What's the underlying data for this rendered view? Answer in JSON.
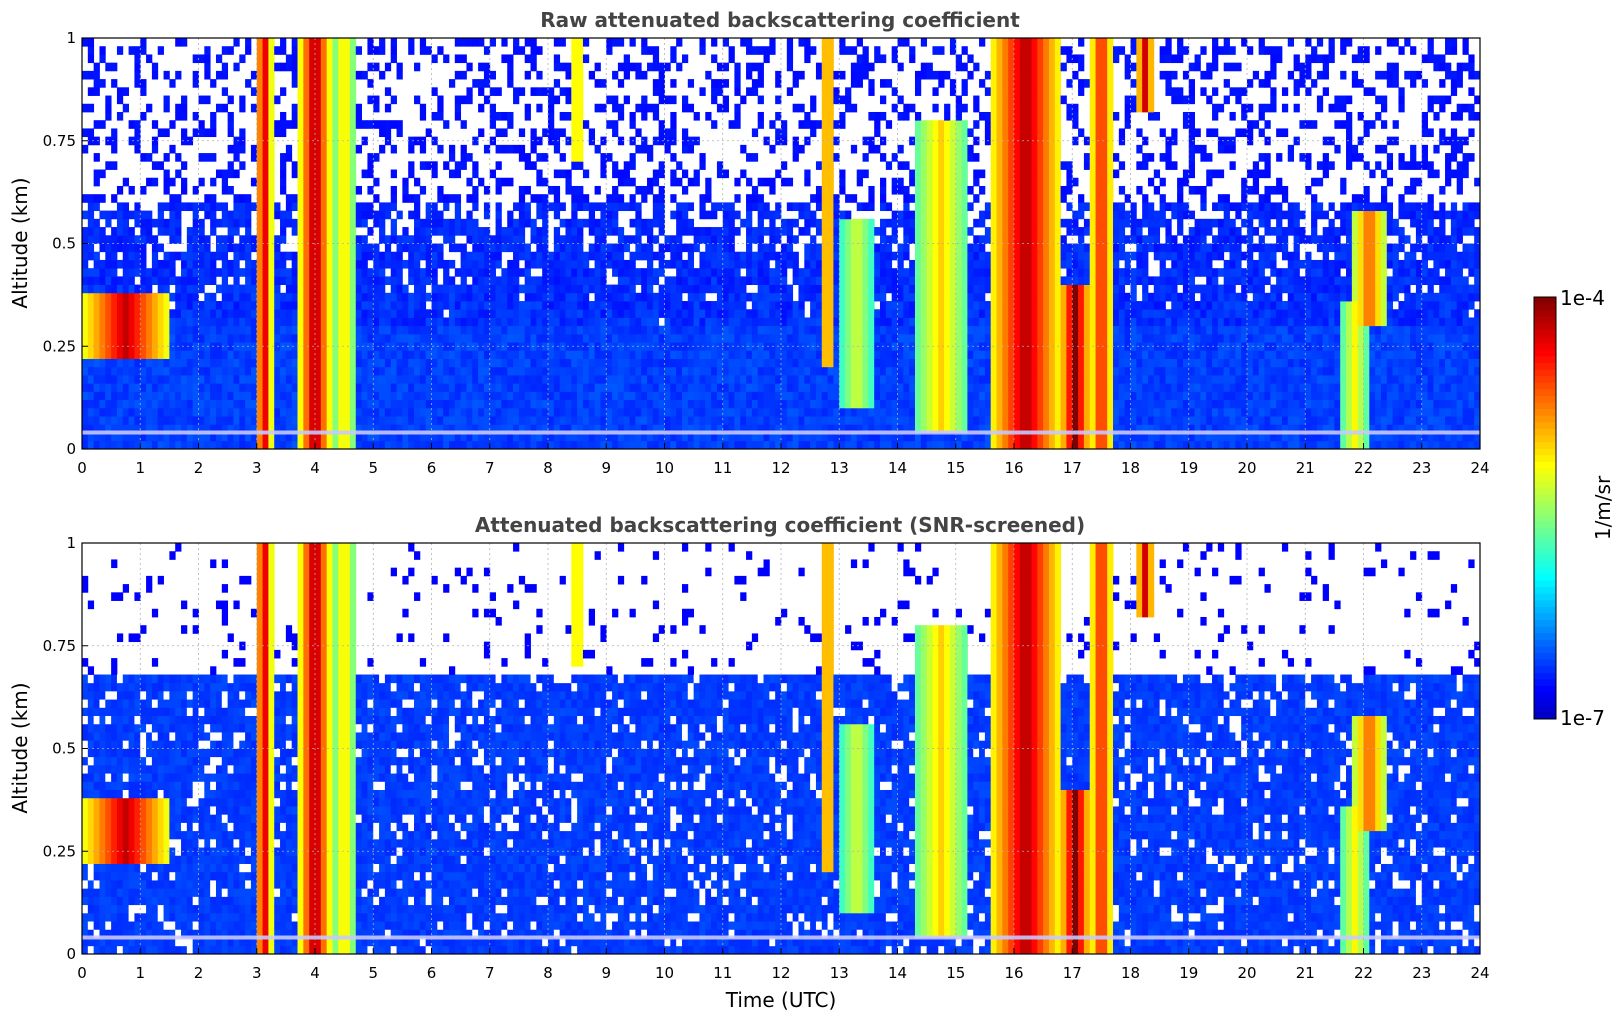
{
  "chart_data": {
    "type": "heatmap",
    "colormap": "jet",
    "x_label": "Time (UTC)",
    "x_ticks": [
      "0",
      "1",
      "2",
      "3",
      "4",
      "5",
      "6",
      "7",
      "8",
      "9",
      "10",
      "11",
      "12",
      "13",
      "14",
      "15",
      "16",
      "17",
      "18",
      "19",
      "20",
      "21",
      "22",
      "23",
      "24"
    ],
    "y_ticks": [
      "0",
      "0.25",
      "0.5",
      "0.75",
      "1"
    ],
    "xlim": [
      0,
      24
    ],
    "ylim": [
      0,
      1
    ],
    "grid": true,
    "colorbar": {
      "max_label": "1e-4",
      "min_label": "1e-7",
      "unit": "1/m/sr",
      "scale": "log",
      "range": [
        1e-07,
        0.0001
      ]
    },
    "panels": [
      {
        "title": "Raw attenuated backscattering coefficient",
        "ylabel": "Altitude (km)",
        "screened": false
      },
      {
        "title": "Attenuated backscattering coefficient (SNR-screened)",
        "ylabel": "Altitude (km)",
        "screened": true
      }
    ],
    "features": [
      {
        "t0": 0.0,
        "t1": 1.5,
        "z0": 0.22,
        "z1": 0.38,
        "level": 0.92
      },
      {
        "t0": 3.0,
        "t1": 3.25,
        "z0": 0.0,
        "z1": 1.0,
        "level": 0.95
      },
      {
        "t0": 3.75,
        "t1": 4.25,
        "z0": 0.0,
        "z1": 1.0,
        "level": 0.98
      },
      {
        "t0": 4.3,
        "t1": 4.7,
        "z0": 0.0,
        "z1": 1.0,
        "level": 0.6
      },
      {
        "t0": 8.4,
        "t1": 8.6,
        "z0": 0.7,
        "z1": 1.0,
        "level": 0.7
      },
      {
        "t0": 12.7,
        "t1": 12.9,
        "z0": 0.2,
        "z1": 1.0,
        "level": 0.8
      },
      {
        "t0": 13.0,
        "t1": 13.6,
        "z0": 0.1,
        "z1": 0.55,
        "level": 0.5
      },
      {
        "t0": 14.3,
        "t1": 15.2,
        "z0": 0.05,
        "z1": 0.8,
        "level": 0.6
      },
      {
        "t0": 15.6,
        "t1": 16.8,
        "z0": 0.0,
        "z1": 1.0,
        "level": 0.95
      },
      {
        "t0": 16.8,
        "t1": 17.3,
        "z0": 0.0,
        "z1": 0.4,
        "level": 1.0
      },
      {
        "t0": 17.3,
        "t1": 17.7,
        "z0": 0.0,
        "z1": 1.0,
        "level": 0.85
      },
      {
        "t0": 18.1,
        "t1": 18.4,
        "z0": 0.82,
        "z1": 1.0,
        "level": 0.9
      },
      {
        "t0": 21.6,
        "t1": 22.1,
        "z0": 0.0,
        "z1": 0.35,
        "level": 0.55
      },
      {
        "t0": 21.8,
        "t1": 22.4,
        "z0": 0.3,
        "z1": 0.58,
        "level": 0.75
      }
    ]
  }
}
